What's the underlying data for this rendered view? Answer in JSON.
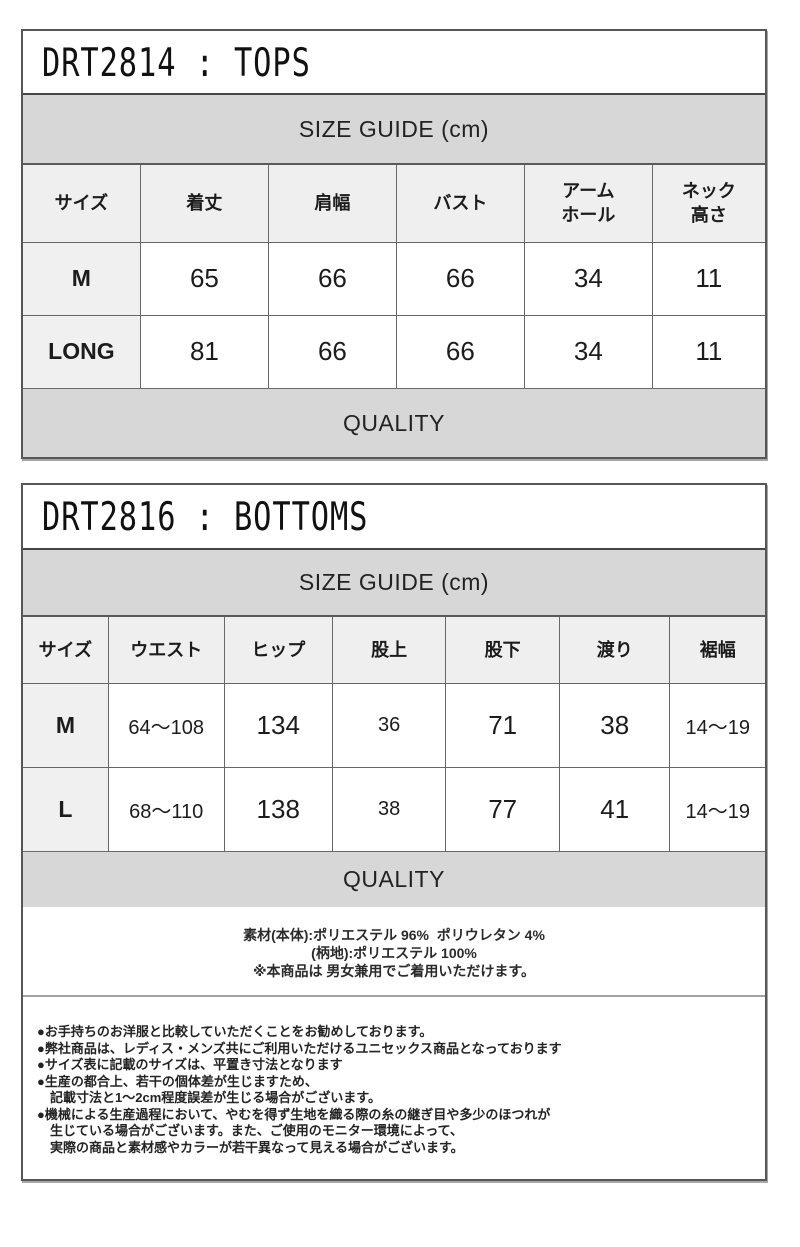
{
  "colors": {
    "band_bg": "#d7d7d7",
    "header_cell_bg": "#efefef",
    "cell_border": "#676767",
    "outer_border": "#565656",
    "text": "#1c1c1c"
  },
  "sections": [
    {
      "title": "DRT2814 : TOPS",
      "size_guide_label": "SIZE GUIDE (cm)",
      "quality_label": "QUALITY",
      "columns": [
        "サイズ",
        "着丈",
        "肩幅",
        "バスト",
        "アーム\nホール",
        "ネック\n高さ"
      ],
      "rows": [
        {
          "size": "M",
          "values": [
            "65",
            "66",
            "66",
            "34",
            "11"
          ]
        },
        {
          "size": "LONG",
          "values": [
            "81",
            "66",
            "66",
            "34",
            "11"
          ]
        }
      ]
    },
    {
      "title": "DRT2816 : BOTTOMS",
      "size_guide_label": "SIZE GUIDE (cm)",
      "quality_label": "QUALITY",
      "columns": [
        "サイズ",
        "ウエスト",
        "ヒップ",
        "股上",
        "股下",
        "渡り",
        "裾幅"
      ],
      "rows": [
        {
          "size": "M",
          "values": [
            "64～108",
            "134",
            "36",
            "71",
            "38",
            "14～19"
          ]
        },
        {
          "size": "L",
          "values": [
            "68～110",
            "138",
            "38",
            "77",
            "41",
            "14～19"
          ]
        }
      ],
      "material_lines": [
        "素材(本体):ポリエステル 96%  ポリウレタン 4%",
        "(柄地):ポリエステル 100%",
        "※本商品は 男女兼用でご着用いただけます。"
      ],
      "notes": [
        "●お手持ちのお洋服と比較していただくことをお勧めしております。",
        "●弊社商品は、レディス・メンズ共にご利用いただけるユニセックス商品となっております",
        "●サイズ表に記載のサイズは、平置き寸法となります",
        "●生産の都合上、若干の個体差が生じますため、",
        "　記載寸法と1～2cm程度誤差が生じる場合がございます。",
        "●機械による生産過程において、やむを得ず生地を織る際の糸の継ぎ目や多少のほつれが",
        "　生じている場合がございます。また、ご使用のモニター環境によって、",
        "　実際の商品と素材感やカラーが若干異なって見える場合がございます。"
      ]
    }
  ]
}
